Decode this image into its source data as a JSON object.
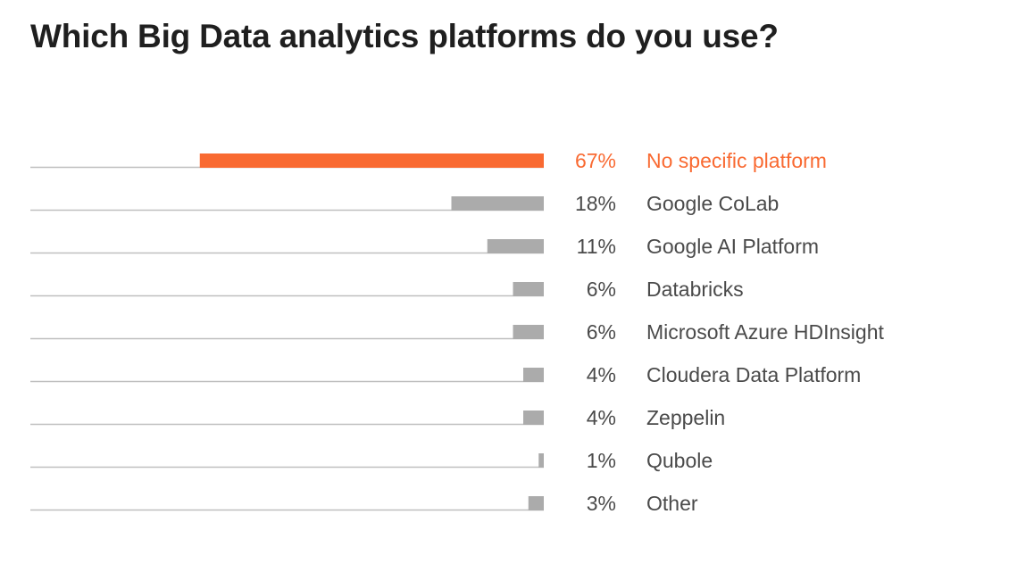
{
  "chart_data": {
    "type": "bar",
    "orientation": "horizontal",
    "title": "Which Big Data analytics platforms do you use?",
    "value_format": "percent",
    "categories": [
      "No specific platform",
      "Google CoLab",
      "Google AI Platform",
      "Databricks",
      "Microsoft Azure HDInsight",
      "Cloudera Data Platform",
      "Zeppelin",
      "Qubole",
      "Other"
    ],
    "values": [
      67,
      18,
      11,
      6,
      6,
      4,
      4,
      1,
      3
    ],
    "value_labels": [
      "67%",
      "18%",
      "11%",
      "6%",
      "6%",
      "4%",
      "4%",
      "1%",
      "3%"
    ],
    "highlight_index": 0,
    "xlim": [
      0,
      100
    ],
    "bar_direction": "right-to-left",
    "grid": false,
    "legend": "none",
    "colors": {
      "highlight": "#f96a32",
      "bar": "#ababab",
      "baseline": "#bfbfbf",
      "label": "#4a4a4a",
      "title": "#1f1f1f"
    }
  }
}
